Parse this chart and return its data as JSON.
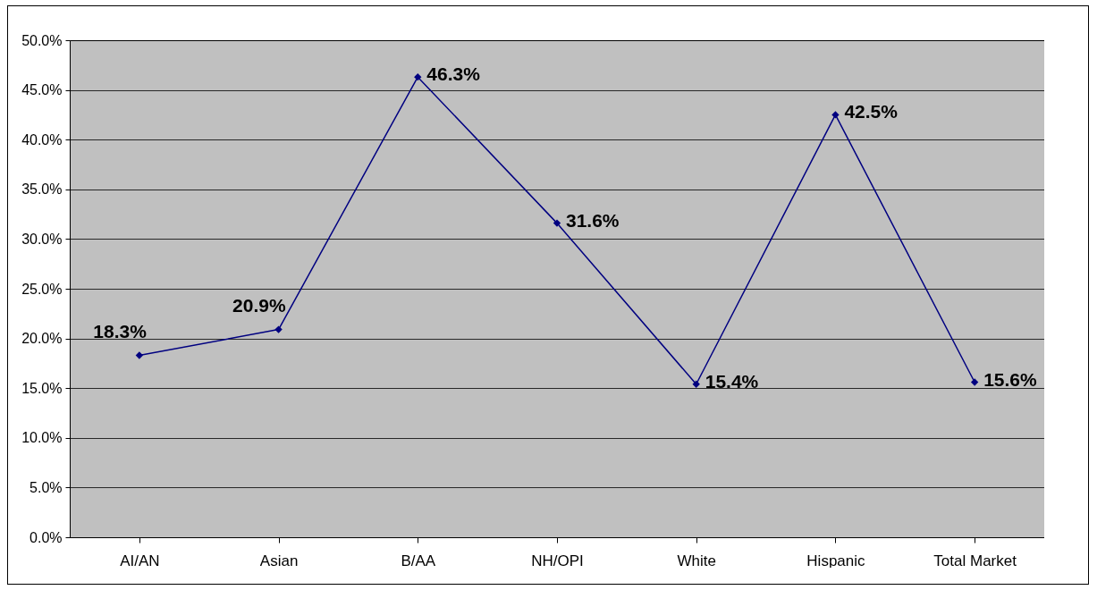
{
  "chart_data": {
    "type": "line",
    "categories": [
      "AI/AN",
      "Asian",
      "B/AA",
      "NH/OPI",
      "White",
      "Hispanic",
      "Total Market"
    ],
    "series": [
      {
        "color": "#000080",
        "values": [
          18.3,
          20.9,
          46.3,
          31.6,
          15.4,
          42.5,
          15.6
        ],
        "value_labels": [
          "18.3%",
          "20.9%",
          "46.3%",
          "31.6%",
          "15.4%",
          "42.5%",
          "15.6%"
        ]
      }
    ],
    "ylim": [
      0,
      50
    ],
    "yticks": [
      {
        "value": 0,
        "label": "0.0%"
      },
      {
        "value": 5,
        "label": "5.0%"
      },
      {
        "value": 10,
        "label": "10.0%"
      },
      {
        "value": 15,
        "label": "15.0%"
      },
      {
        "value": 20,
        "label": "20.0%"
      },
      {
        "value": 25,
        "label": "25.0%"
      },
      {
        "value": 30,
        "label": "30.0%"
      },
      {
        "value": 35,
        "label": "35.0%"
      },
      {
        "value": 40,
        "label": "40.0%"
      },
      {
        "value": 45,
        "label": "45.0%"
      },
      {
        "value": 50,
        "label": "50.0%"
      }
    ],
    "grid": "y",
    "marker": "diamond",
    "line_style": "solid"
  }
}
